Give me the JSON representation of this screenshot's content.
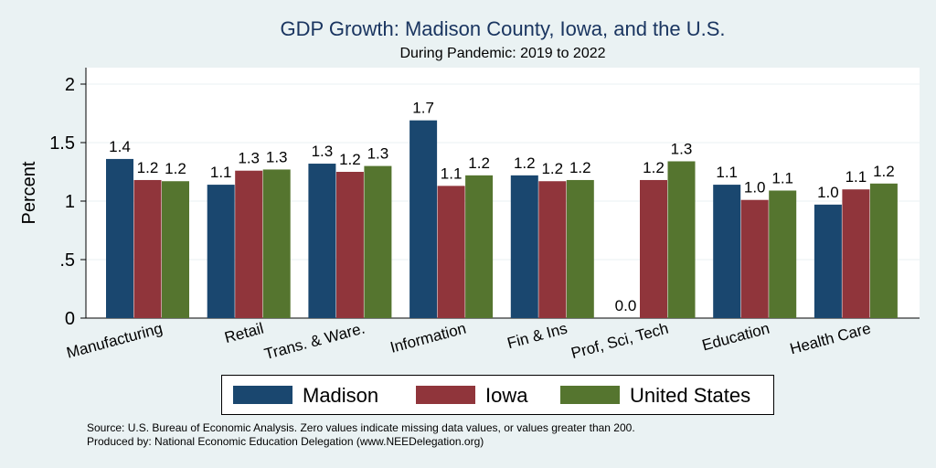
{
  "chart_data": {
    "type": "bar",
    "title": "GDP Growth: Madison County, Iowa, and the U.S.",
    "subtitle": "During Pandemic: 2019 to 2022",
    "ylabel": "Percent",
    "ylim": [
      0,
      2.2
    ],
    "yticks": [
      "0",
      ".5",
      "1",
      "1.5",
      "2"
    ],
    "ytick_values": [
      0,
      0.5,
      1,
      1.5,
      2
    ],
    "grid": true,
    "categories": [
      "Manufacturing",
      "Retail",
      "Trans. & Ware.",
      "Information",
      "Fin & Ins",
      "Prof, Sci, Tech",
      "Education",
      "Health Care"
    ],
    "series": [
      {
        "name": "Madison",
        "color": "#1a476f",
        "values": [
          1.36,
          1.14,
          1.32,
          1.69,
          1.22,
          0.0,
          1.14,
          0.97
        ],
        "labels": [
          "1.4",
          "1.1",
          "1.3",
          "1.7",
          "1.2",
          "0.0",
          "1.1",
          "1.0"
        ]
      },
      {
        "name": "Iowa",
        "color": "#90353b",
        "values": [
          1.18,
          1.26,
          1.25,
          1.13,
          1.17,
          1.18,
          1.01,
          1.1
        ],
        "labels": [
          "1.2",
          "1.3",
          "1.2",
          "1.1",
          "1.2",
          "1.2",
          "1.0",
          "1.1"
        ]
      },
      {
        "name": "United States",
        "color": "#55752f",
        "values": [
          1.17,
          1.27,
          1.3,
          1.22,
          1.18,
          1.34,
          1.09,
          1.15
        ],
        "labels": [
          "1.2",
          "1.3",
          "1.3",
          "1.2",
          "1.2",
          "1.3",
          "1.1",
          "1.2"
        ]
      }
    ],
    "legend_position": "bottom"
  },
  "notes": {
    "source": "Source: U.S. Bureau of Economic Analysis. Zero values indicate missing data values, or values greater than 200.",
    "produced_by": "Produced by: National Economic Education Delegation (www.NEEDelegation.org)"
  }
}
